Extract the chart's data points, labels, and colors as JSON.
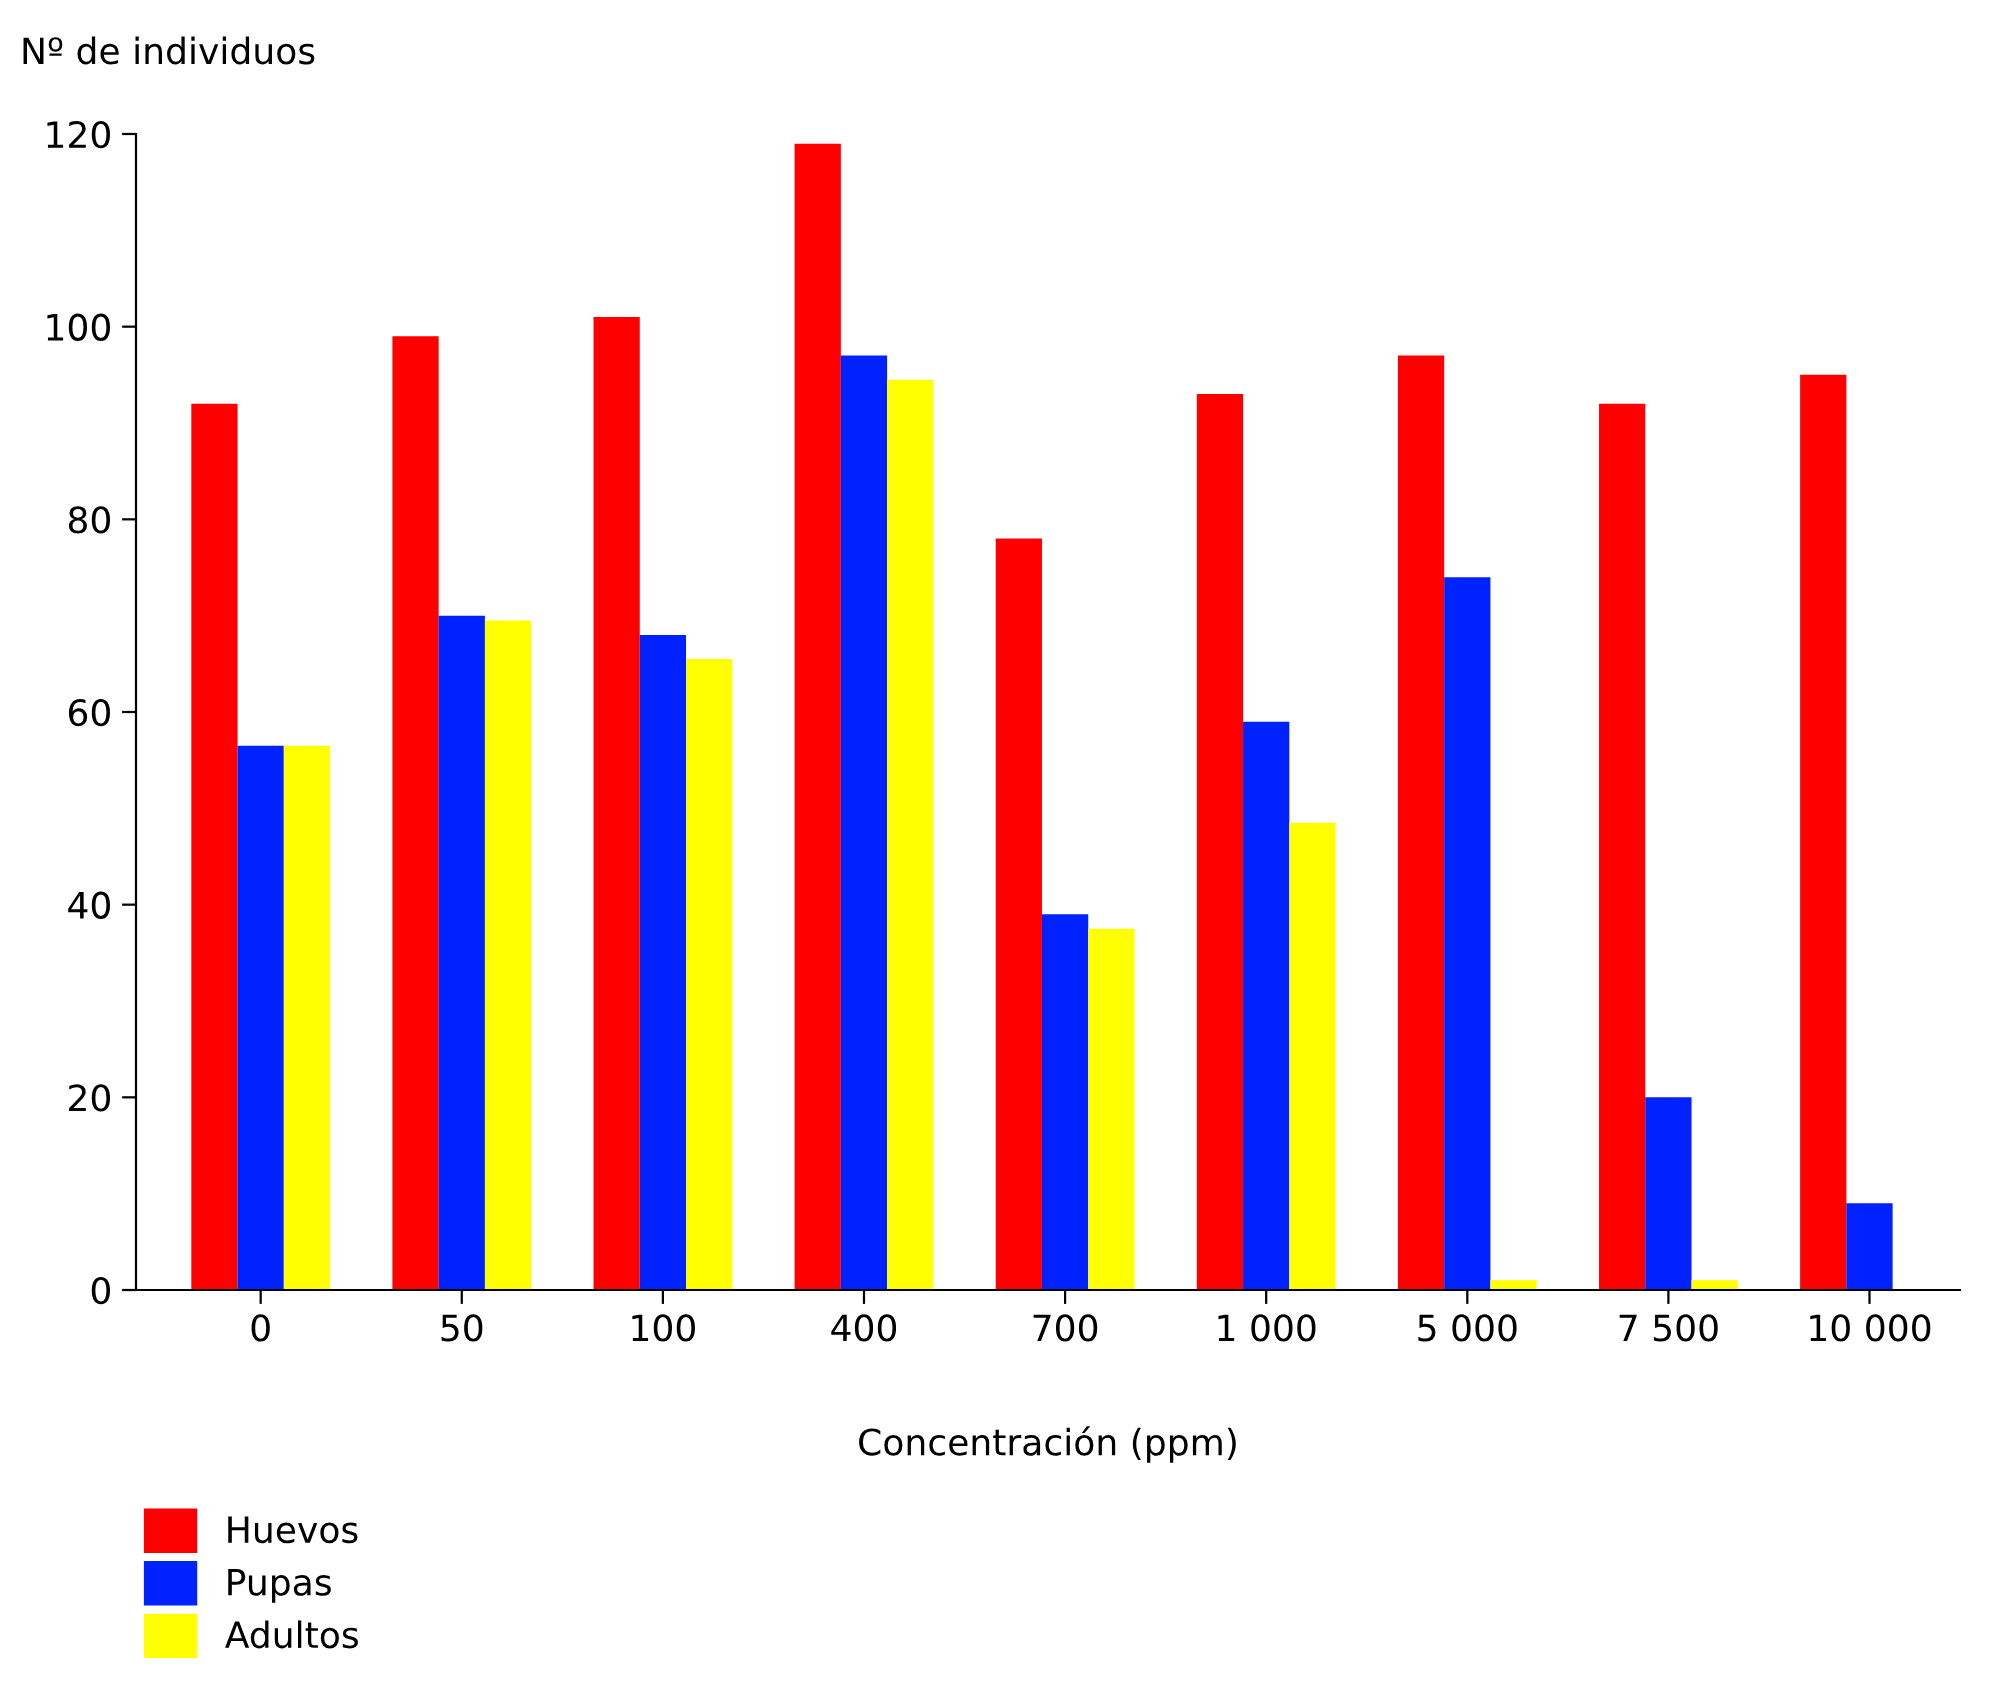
{
  "chart_data": {
    "type": "bar",
    "ylabel": "Nº de individuos",
    "xlabel": "Concentración (ppm)",
    "categories": [
      "0",
      "50",
      "100",
      "400",
      "700",
      "1 000",
      "5 000",
      "7 500",
      "10 000"
    ],
    "series": [
      {
        "name": "Huevos",
        "color": "#ff0000",
        "values": [
          92,
          99,
          101,
          119,
          78,
          93,
          97,
          92,
          95
        ]
      },
      {
        "name": "Pupas",
        "color": "#0022ff",
        "values": [
          56.5,
          70,
          68,
          97,
          39,
          59,
          74,
          20,
          9
        ]
      },
      {
        "name": "Adultos",
        "color": "#ffff00",
        "values": [
          56.5,
          69.5,
          65.5,
          94.5,
          37.5,
          48.5,
          1,
          1,
          0
        ]
      }
    ],
    "ylim": [
      0,
      120
    ],
    "yticks": [
      0,
      20,
      40,
      60,
      80,
      100,
      120
    ],
    "grid": false,
    "legend": "bottom left"
  }
}
